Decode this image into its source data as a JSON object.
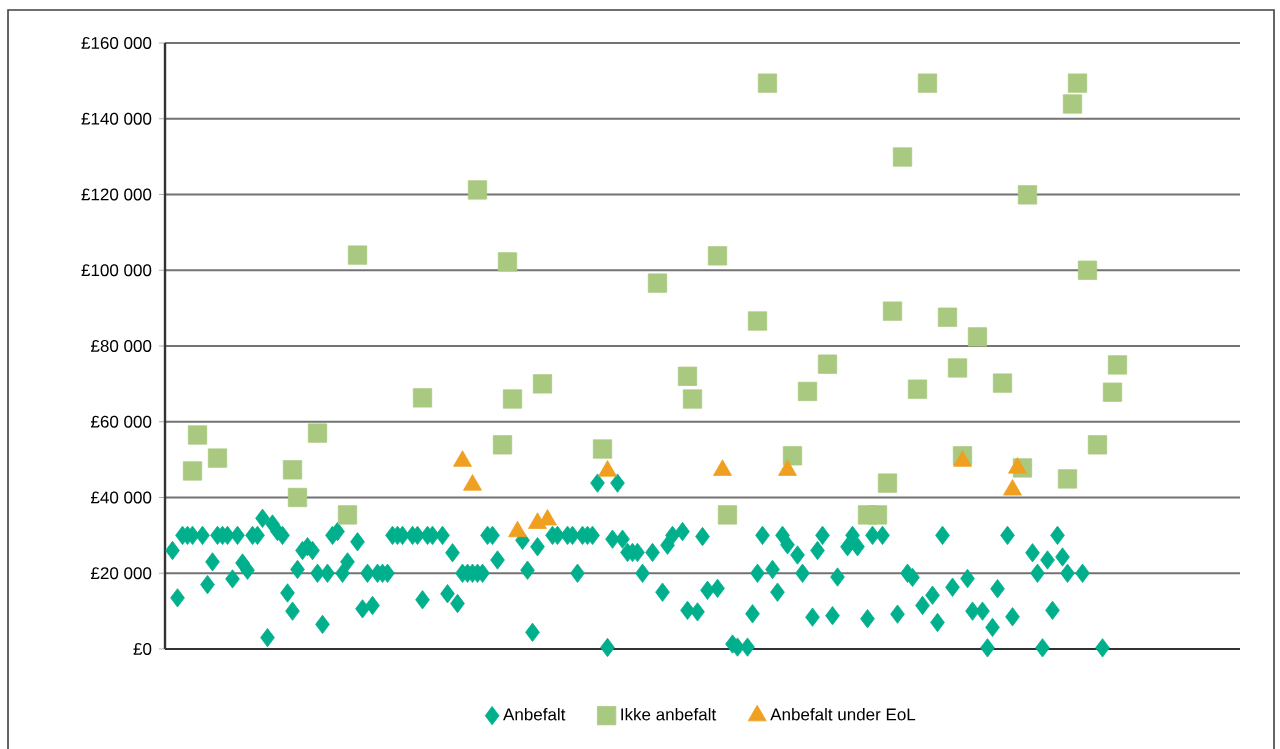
{
  "chart_data": {
    "type": "scatter",
    "categories": [
      null,
      null,
      null,
      null,
      null,
      null,
      null,
      null,
      null,
      null,
      null,
      null,
      null,
      null,
      null,
      null,
      null,
      null,
      null,
      null,
      null,
      null,
      null,
      null,
      null,
      null,
      null,
      null,
      null,
      null,
      null,
      null,
      null,
      null,
      null,
      null,
      null,
      null,
      null,
      null,
      null,
      null,
      null,
      null,
      null,
      null,
      null,
      null,
      null,
      null,
      null,
      null,
      null,
      null,
      null,
      null,
      null,
      null,
      null,
      null,
      null,
      null,
      null,
      null,
      null,
      null,
      null,
      null,
      null,
      null,
      null,
      null,
      null,
      null,
      null,
      null,
      null,
      null,
      null,
      null,
      null,
      null,
      null,
      null,
      null,
      null,
      null,
      null,
      null,
      null,
      null,
      null,
      null,
      null,
      null,
      null,
      null,
      null,
      null,
      null,
      null,
      null,
      null,
      null,
      null,
      null,
      null,
      null,
      null,
      null,
      null,
      null,
      null,
      null,
      null,
      null,
      null,
      null,
      null,
      null,
      null,
      null,
      null,
      null,
      null,
      null,
      null,
      null,
      null,
      null,
      null,
      null,
      null,
      null,
      null,
      null,
      null,
      null,
      null,
      null,
      null,
      null,
      null,
      null,
      null,
      null,
      null,
      null,
      null,
      null,
      null,
      null,
      null,
      null,
      null,
      null,
      null,
      null,
      null,
      null,
      null,
      null,
      null,
      null,
      null,
      null,
      null,
      null,
      null,
      null,
      null,
      null,
      null,
      null,
      null,
      null,
      null,
      null,
      null,
      null,
      null,
      null,
      null,
      null,
      null,
      null,
      null,
      null,
      null,
      null,
      null,
      null,
      null,
      null,
      null,
      null,
      null,
      null,
      null,
      null,
      null,
      null,
      null,
      null,
      null,
      null,
      null,
      null,
      null,
      null,
      null,
      null,
      null,
      null,
      null
    ],
    "series": [
      {
        "name": "Anbefalt",
        "color": "#00b08c",
        "marker": "diamond",
        "values": [
          null,
          26000,
          13500,
          30000,
          30000,
          30000,
          null,
          30000,
          17000,
          23000,
          30000,
          30000,
          30000,
          18500,
          30000,
          22700,
          20800,
          30000,
          30000,
          34500,
          3000,
          33000,
          31000,
          30000,
          14800,
          10000,
          21000,
          26000,
          27000,
          26000,
          20000,
          6500,
          20000,
          30000,
          31000,
          20000,
          23000,
          null,
          28300,
          10600,
          20000,
          11500,
          20000,
          20000,
          20000,
          30000,
          30000,
          30000,
          null,
          30000,
          30000,
          13000,
          30000,
          30000,
          null,
          30000,
          14600,
          25400,
          12000,
          20000,
          20000,
          20000,
          20000,
          20000,
          30000,
          30000,
          23500,
          null,
          null,
          null,
          null,
          28700,
          20800,
          4400,
          27000,
          null,
          null,
          30000,
          30000,
          null,
          30000,
          30000,
          20000,
          30000,
          30000,
          30000,
          43800,
          null,
          400,
          29000,
          43800,
          29000,
          25500,
          25500,
          25500,
          20000,
          null,
          25500,
          null,
          15000,
          27400,
          30000,
          null,
          31000,
          10200,
          null,
          9800,
          29700,
          15500,
          null,
          16000,
          null,
          null,
          1300,
          500,
          null,
          500,
          9300,
          20000,
          30000,
          null,
          21000,
          15000,
          30000,
          27500,
          null,
          24800,
          20000,
          null,
          8400,
          26000,
          30000,
          null,
          8800,
          19000,
          null,
          27000,
          30000,
          27000,
          null,
          8000,
          30000,
          null,
          30000,
          null,
          null,
          9200,
          null,
          20000,
          18900,
          null,
          11500,
          null,
          14200,
          7000,
          30000,
          null,
          16300,
          null,
          null,
          18600,
          10000,
          null,
          10000,
          300,
          5700,
          15900,
          null,
          30000,
          8500,
          null,
          null,
          null,
          25400,
          20000,
          300,
          23500,
          10200,
          30000,
          24300,
          20000,
          null,
          null,
          20000,
          null,
          null,
          null,
          300,
          null,
          null,
          null,
          null,
          null,
          null,
          null,
          null,
          null,
          null,
          null,
          null,
          null,
          null,
          null,
          null,
          null,
          null,
          null,
          null,
          null,
          null,
          null,
          null,
          null,
          null,
          null
        ]
      },
      {
        "name": "Ikke anbefalt",
        "color": "#a8c97f",
        "marker": "square",
        "values": [
          null,
          null,
          null,
          null,
          null,
          47000,
          56500,
          null,
          null,
          null,
          50400,
          null,
          null,
          null,
          null,
          null,
          null,
          null,
          null,
          null,
          null,
          null,
          null,
          null,
          null,
          47300,
          40000,
          null,
          null,
          null,
          57000,
          null,
          null,
          null,
          null,
          null,
          35400,
          null,
          104000,
          null,
          null,
          null,
          null,
          null,
          null,
          null,
          null,
          null,
          null,
          null,
          null,
          66300,
          null,
          null,
          null,
          null,
          null,
          null,
          null,
          null,
          null,
          null,
          121200,
          null,
          null,
          null,
          null,
          53900,
          102200,
          66000,
          null,
          null,
          null,
          null,
          null,
          70000,
          null,
          null,
          null,
          null,
          null,
          null,
          null,
          null,
          null,
          null,
          null,
          52800,
          null,
          null,
          null,
          null,
          null,
          null,
          null,
          null,
          null,
          null,
          96600,
          null,
          null,
          null,
          null,
          null,
          72000,
          66000,
          null,
          null,
          null,
          null,
          103800,
          null,
          35400,
          null,
          null,
          null,
          null,
          null,
          86600,
          null,
          149400,
          null,
          null,
          null,
          null,
          51000,
          null,
          null,
          68000,
          null,
          null,
          null,
          75200,
          null,
          null,
          null,
          null,
          null,
          null,
          null,
          35400,
          null,
          35400,
          null,
          43800,
          89200,
          null,
          129900,
          null,
          null,
          68600,
          null,
          149400,
          null,
          null,
          null,
          87600,
          null,
          74200,
          51000,
          null,
          null,
          82400,
          null,
          null,
          null,
          null,
          70200,
          null,
          null,
          null,
          47800,
          119900,
          null,
          null,
          null,
          null,
          null,
          null,
          null,
          44900,
          143900,
          149400,
          null,
          100000,
          null,
          53900,
          null,
          null,
          67800,
          75000,
          null,
          null,
          null,
          null,
          null,
          null,
          null,
          null,
          null,
          null,
          null,
          null,
          null,
          null,
          null,
          null,
          null,
          null,
          null,
          null,
          null,
          null,
          null,
          null
        ]
      },
      {
        "name": "Anbefalt under EoL",
        "color": "#f0a020",
        "marker": "triangle",
        "values": [
          null,
          null,
          null,
          null,
          null,
          null,
          null,
          null,
          null,
          null,
          null,
          null,
          null,
          null,
          null,
          null,
          null,
          null,
          null,
          null,
          null,
          null,
          null,
          null,
          null,
          null,
          null,
          null,
          null,
          null,
          null,
          null,
          null,
          null,
          null,
          null,
          null,
          null,
          null,
          null,
          null,
          null,
          null,
          null,
          null,
          null,
          null,
          null,
          null,
          null,
          null,
          null,
          null,
          null,
          null,
          null,
          null,
          null,
          null,
          49600,
          null,
          43300,
          null,
          null,
          null,
          null,
          null,
          null,
          null,
          null,
          31000,
          null,
          null,
          null,
          33200,
          null,
          34100,
          null,
          null,
          null,
          null,
          null,
          null,
          null,
          null,
          null,
          null,
          null,
          47000,
          null,
          null,
          null,
          null,
          null,
          null,
          null,
          null,
          null,
          null,
          null,
          null,
          null,
          null,
          null,
          null,
          null,
          null,
          null,
          null,
          null,
          null,
          47200,
          null,
          null,
          null,
          null,
          null,
          null,
          null,
          null,
          null,
          null,
          null,
          null,
          47200,
          null,
          null,
          null,
          null,
          null,
          null,
          null,
          null,
          null,
          null,
          null,
          null,
          null,
          null,
          null,
          null,
          null,
          null,
          null,
          null,
          null,
          null,
          null,
          null,
          null,
          null,
          null,
          null,
          null,
          null,
          null,
          null,
          null,
          null,
          49600,
          null,
          null,
          null,
          null,
          null,
          null,
          null,
          null,
          null,
          42000,
          47800,
          null,
          null,
          null,
          null,
          null,
          null,
          null,
          null,
          null,
          null,
          null,
          null,
          null,
          null,
          null,
          null,
          null,
          null,
          null,
          null,
          null,
          null,
          null,
          null,
          null,
          null,
          null,
          null,
          null,
          null,
          null,
          null,
          null,
          null,
          null,
          null,
          null,
          null,
          null,
          null,
          null,
          null,
          null,
          null
        ]
      }
    ],
    "ylim": [
      0,
      160000
    ],
    "yticks": [
      {
        "value": 0,
        "label": "£0"
      },
      {
        "value": 20000,
        "label": "£20 000"
      },
      {
        "value": 40000,
        "label": "£40 000"
      },
      {
        "value": 60000,
        "label": "£60 000"
      },
      {
        "value": 80000,
        "label": "£80 000"
      },
      {
        "value": 100000,
        "label": "£100 000"
      },
      {
        "value": 120000,
        "label": "£120 000"
      },
      {
        "value": 140000,
        "label": "£140 000"
      },
      {
        "value": 160000,
        "label": "£160 000"
      }
    ],
    "grid": "y",
    "legend": "bottom",
    "tick_labels": "y"
  }
}
